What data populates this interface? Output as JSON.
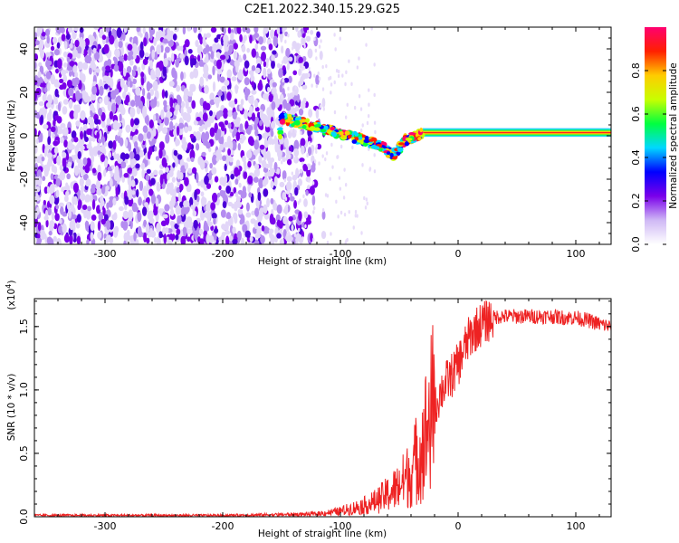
{
  "title": "C2E1.2022.340.15.29.G25",
  "chart_data": [
    {
      "type": "heatmap",
      "title": "C2E1.2022.340.15.29.G25",
      "xlabel": "Height of straight line (km)",
      "ylabel": "Frequency (Hz)",
      "xlim": [
        -360,
        130
      ],
      "ylim": [
        -50,
        50
      ],
      "xticks": [
        -300,
        -200,
        -100,
        0,
        100
      ],
      "yticks": [
        -40,
        -20,
        0,
        20,
        40
      ],
      "colorbar": {
        "label": "Normalized spectral amplitude",
        "range": [
          0.0,
          1.0
        ],
        "ticks": [
          "0.0",
          "0.2",
          "0.4",
          "0.6",
          "0.8"
        ],
        "colormap": [
          "#ffffff",
          "#cfb8f5",
          "#7a00ea",
          "#0000ff",
          "#00d8ff",
          "#00ff40",
          "#c8ff00",
          "#ffcc00",
          "#ff2000",
          "#ff0070"
        ]
      },
      "features": {
        "noise_region_x": [
          -360,
          -150
        ],
        "signal_track": [
          {
            "x": -150,
            "y": 8
          },
          {
            "x": -120,
            "y": 4
          },
          {
            "x": -100,
            "y": 1
          },
          {
            "x": -80,
            "y": -2
          },
          {
            "x": -65,
            "y": -5
          },
          {
            "x": -55,
            "y": -9
          },
          {
            "x": -45,
            "y": -2
          },
          {
            "x": -40,
            "y": -1
          },
          {
            "x": -30,
            "y": 1
          },
          {
            "x": 0,
            "y": 1.5
          },
          {
            "x": 130,
            "y": 1.5
          }
        ],
        "steady_band_x": [
          -30,
          130
        ],
        "steady_band_y": 1.5
      }
    },
    {
      "type": "line",
      "xlabel": "Height of straight line (km)",
      "ylabel": "SNR (10 * v/v)",
      "y_multiplier": "(x10",
      "y_multiplier_exp": "4",
      "y_multiplier_close": ")",
      "xlim": [
        -360,
        130
      ],
      "ylim": [
        0,
        1.72
      ],
      "xticks": [
        -300,
        -200,
        -100,
        0,
        100
      ],
      "yticks": [
        "0.0",
        "0.5",
        "1.0",
        "1.5"
      ],
      "color": "#ee2222",
      "series": [
        {
          "x": [
            -360,
            -300,
            -200,
            -150,
            -120,
            -100,
            -90,
            -80,
            -70,
            -60,
            -50,
            -40,
            -35,
            -30,
            -25,
            -20,
            -18,
            -15,
            -10,
            -5,
            0,
            5,
            10,
            15,
            20,
            25,
            30,
            35,
            40,
            50,
            60,
            70,
            80,
            90,
            100,
            110,
            120,
            130
          ],
          "y": [
            0.01,
            0.01,
            0.01,
            0.015,
            0.02,
            0.04,
            0.06,
            0.08,
            0.11,
            0.16,
            0.22,
            0.32,
            0.42,
            0.52,
            0.68,
            0.82,
            0.9,
            0.98,
            1.06,
            1.12,
            1.2,
            1.32,
            1.42,
            1.48,
            1.52,
            1.55,
            1.57,
            1.58,
            1.58,
            1.58,
            1.58,
            1.58,
            1.58,
            1.57,
            1.57,
            1.55,
            1.52,
            1.5
          ]
        }
      ]
    }
  ]
}
